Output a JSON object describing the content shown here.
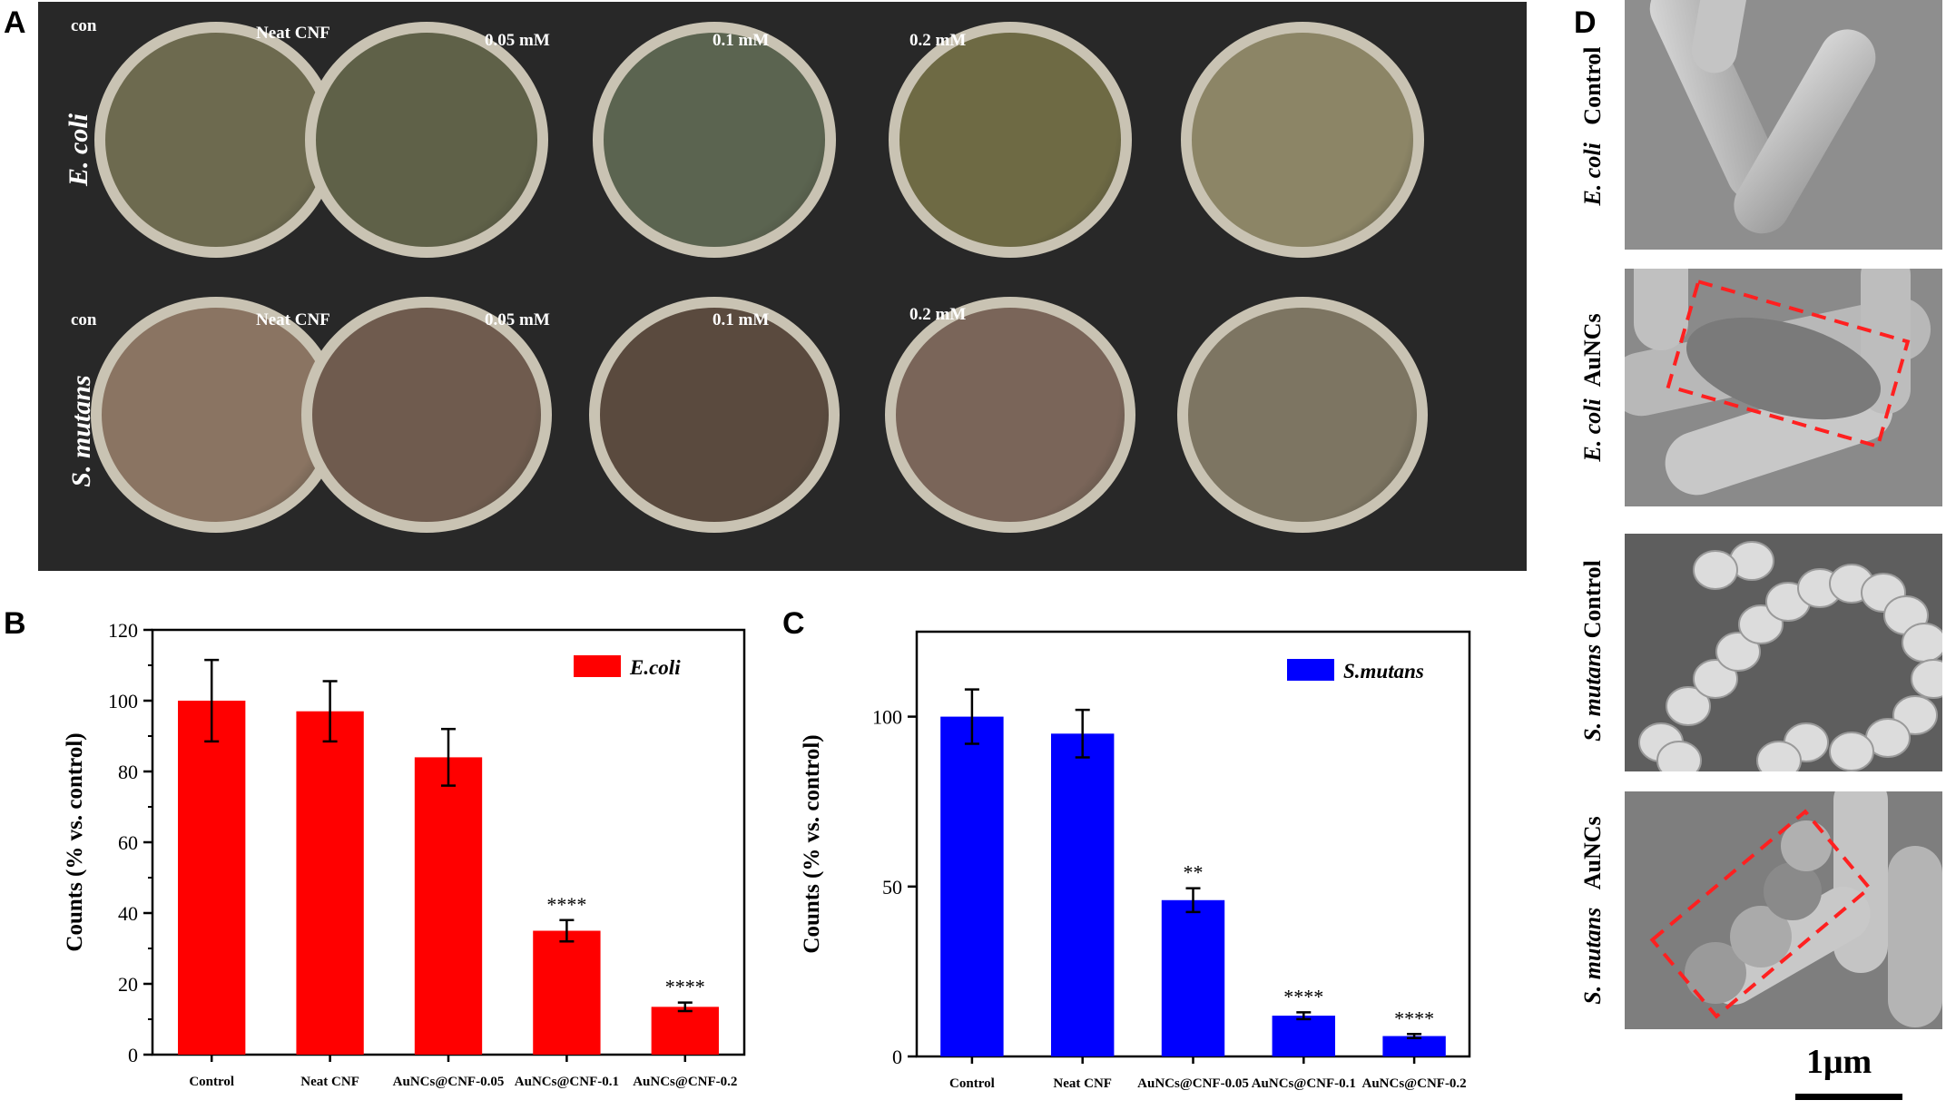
{
  "panels": {
    "A": "A",
    "B": "B",
    "C": "C",
    "D": "D"
  },
  "panelA": {
    "rows": [
      {
        "organism": "E. coli",
        "dishes": [
          {
            "label": "con",
            "agar": "#6d6a4f"
          },
          {
            "label": "Neat CNF",
            "agar": "#5f6148"
          },
          {
            "label": "0.05 mM",
            "agar": "#5b6450"
          },
          {
            "label": "0.1 mM",
            "agar": "#6e6a44"
          },
          {
            "label": "0.2 mM",
            "agar": "#8c8566"
          }
        ]
      },
      {
        "organism": "S. mutans",
        "dishes": [
          {
            "label": "con",
            "agar": "#8a7462"
          },
          {
            "label": "Neat CNF",
            "agar": "#6f5b4e"
          },
          {
            "label": "0.05 mM",
            "agar": "#5a4a3e"
          },
          {
            "label": "0.1 mM",
            "agar": "#7a6559"
          },
          {
            "label": "0.2 mM",
            "agar": "#7d7562"
          }
        ]
      }
    ]
  },
  "chart_data": [
    {
      "type": "bar",
      "ylabel": "Counts (% vs. control)",
      "ylim": [
        0,
        120
      ],
      "yticks": [
        "0",
        "20",
        "40",
        "60",
        "80",
        "100",
        "120"
      ],
      "categories": [
        "Control",
        "Neat CNF",
        "AuNCs@CNF-0.05",
        "AuNCs@CNF-0.1",
        "AuNCs@CNF-0.2"
      ],
      "series": [
        {
          "name": "E.coli",
          "values": [
            100,
            97,
            84,
            35,
            13.5
          ],
          "errors": [
            11.5,
            8.5,
            8,
            3,
            1.2
          ]
        }
      ],
      "annotations": [
        "",
        "",
        "",
        "****",
        "****"
      ],
      "color": "#ff0000",
      "legend": "top-right"
    },
    {
      "type": "bar",
      "ylabel": "Counts (% vs. control)",
      "ylim": [
        0,
        125
      ],
      "yticks": [
        "0",
        "50",
        "100"
      ],
      "categories": [
        "Control",
        "Neat CNF",
        "AuNCs@CNF-0.05",
        "AuNCs@CNF-0.1",
        "AuNCs@CNF-0.2"
      ],
      "series": [
        {
          "name": "S.mutans",
          "values": [
            100,
            95,
            46,
            12,
            6
          ],
          "errors": [
            8,
            7,
            3.5,
            1,
            0.6
          ]
        }
      ],
      "annotations": [
        "",
        "",
        "**",
        "****",
        "****"
      ],
      "color": "#0000ff",
      "legend": "top-right"
    }
  ],
  "panelD": {
    "tiles": [
      {
        "organism": "E. coli",
        "condition": "Control"
      },
      {
        "organism": "E. coli",
        "condition": "AuNCs"
      },
      {
        "organism": "S. mutans",
        "condition": "Control"
      },
      {
        "organism": "S. mutans",
        "condition": "AuNCs"
      }
    ],
    "scalebar": "1μm"
  }
}
